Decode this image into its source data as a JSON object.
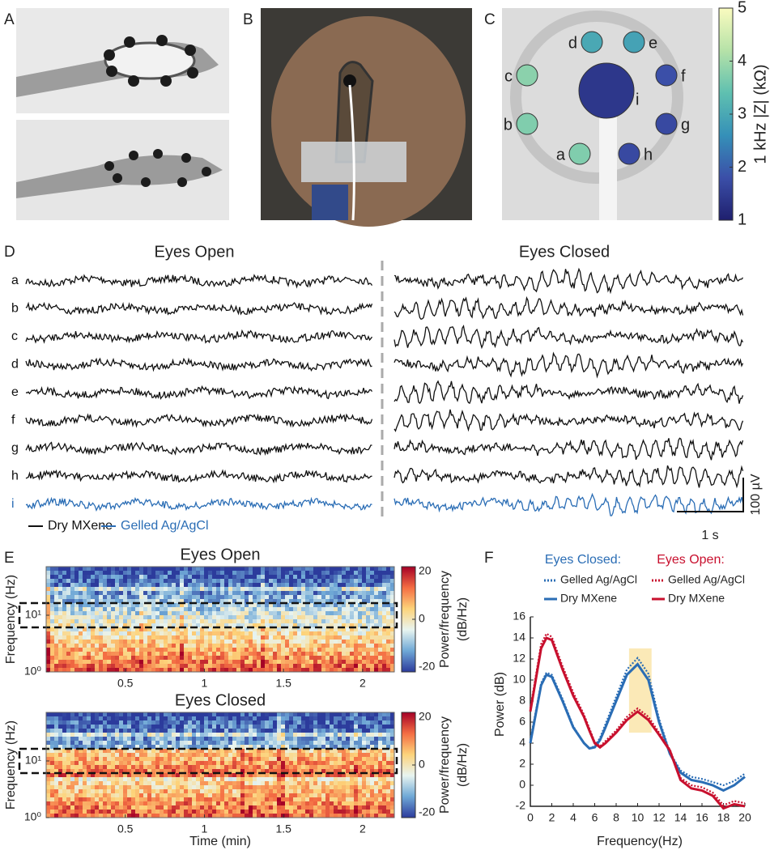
{
  "panel_labels": [
    "A",
    "B",
    "C",
    "D",
    "E",
    "F"
  ],
  "impedance": {
    "colorbar_label": "1 kHz |Z| (kΩ)",
    "clim": [
      1,
      5
    ],
    "ticks": [
      1,
      2,
      3,
      4,
      5
    ],
    "colormap": [
      "#1f1f6e",
      "#3b4fa8",
      "#3590b8",
      "#5fc0b0",
      "#b6e2a8",
      "#fafbbf"
    ],
    "electrodes": [
      {
        "label": "a",
        "value": 3.7
      },
      {
        "label": "b",
        "value": 3.7
      },
      {
        "label": "c",
        "value": 3.8
      },
      {
        "label": "d",
        "value": 3.0
      },
      {
        "label": "e",
        "value": 2.9
      },
      {
        "label": "f",
        "value": 1.8
      },
      {
        "label": "g",
        "value": 1.7
      },
      {
        "label": "h",
        "value": 1.7
      },
      {
        "label": "i",
        "value": 1.4
      }
    ]
  },
  "eeg": {
    "titles": [
      "Eyes Open",
      "Eyes Closed"
    ],
    "channels": [
      {
        "label": "a",
        "legend": 0
      },
      {
        "label": "b",
        "legend": 0
      },
      {
        "label": "c",
        "legend": 0
      },
      {
        "label": "d",
        "legend": 0
      },
      {
        "label": "e",
        "legend": 0
      },
      {
        "label": "f",
        "legend": 0
      },
      {
        "label": "g",
        "legend": 0
      },
      {
        "label": "h",
        "legend": 0
      },
      {
        "label": "i",
        "legend": 1
      }
    ],
    "legend": [
      {
        "name": "Dry MXene",
        "color": "#111111"
      },
      {
        "name": "Gelled Ag/AgCl",
        "color": "#2a6db5"
      }
    ],
    "scale_bar": {
      "voltage": "100 µV",
      "time": "1 s"
    }
  },
  "spectrograms": {
    "charts": [
      {
        "title": "Eyes Open"
      },
      {
        "title": "Eyes Closed"
      }
    ],
    "ylabel": "Frequency (Hz)",
    "xlabel": "Time (min)",
    "xlim": [
      0,
      2.2
    ],
    "xticks": [
      0.5,
      1,
      1.5,
      2
    ],
    "ylim": [
      1,
      72
    ],
    "yticks": [
      {
        "value": 1,
        "label": "10⁰"
      },
      {
        "value": 10,
        "label": "10¹"
      }
    ],
    "clim": [
      -20,
      20
    ],
    "cticks": [
      20,
      0,
      -20
    ],
    "colorbar_label": [
      "Power/frequency",
      "(dB/Hz)"
    ],
    "colormap": [
      "#2c3b9c",
      "#6fa8d6",
      "#e8f4f0",
      "#fdd37a",
      "#f46d43",
      "#a50026"
    ]
  },
  "chart_data": {
    "type": "line",
    "xlabel": "Frequency(Hz)",
    "ylabel": "Power (dB)",
    "xlim": [
      0,
      20
    ],
    "xticks": [
      0,
      2,
      4,
      6,
      8,
      10,
      12,
      14,
      16,
      18,
      20
    ],
    "ylim": [
      -2,
      16
    ],
    "yticks": [
      -2,
      0,
      2,
      4,
      6,
      8,
      10,
      12,
      14,
      16
    ],
    "highlight": {
      "x": [
        9.2,
        11.3
      ],
      "y": [
        5,
        13
      ],
      "color": "#fbe9b7"
    },
    "x": [
      0,
      1,
      1.5,
      2,
      3,
      4,
      5,
      5.5,
      6,
      6.5,
      7,
      8,
      9,
      10,
      11,
      12,
      13,
      14,
      15,
      16,
      17,
      18,
      19,
      20
    ],
    "groups": [
      {
        "title": "Eyes Closed:",
        "color": "#2a6db5",
        "series": [
          {
            "name": "Gelled Ag/AgCl",
            "style": "dotted",
            "values": [
              4.3,
              9.7,
              10.7,
              10.5,
              8.2,
              5.6,
              4,
              3.5,
              3.7,
              4.5,
              5.8,
              8.4,
              11,
              12.1,
              10.6,
              6.3,
              3.1,
              1.4,
              0.8,
              0.6,
              0.3,
              0,
              0.4,
              1.1
            ]
          },
          {
            "name": "Dry MXene",
            "style": "solid",
            "values": [
              4,
              9.5,
              10.5,
              10.3,
              8,
              5.5,
              4,
              3.5,
              3.6,
              4.3,
              5.5,
              8,
              10.5,
              11.5,
              10,
              6,
              3,
              1.2,
              0.5,
              0.3,
              0,
              -0.5,
              0,
              0.8
            ]
          }
        ]
      },
      {
        "title": "Eyes Open:",
        "color": "#c8102e",
        "series": [
          {
            "name": "Gelled Ag/AgCl",
            "style": "dotted",
            "values": [
              7.3,
              13.4,
              14.4,
              14.1,
              11.3,
              8.8,
              6.7,
              5.4,
              4.1,
              3.7,
              4.2,
              5.2,
              6.5,
              7.3,
              6.5,
              5,
              3.4,
              0.7,
              0,
              -0.2,
              -0.7,
              -1.9,
              -1.5,
              -1.7
            ]
          },
          {
            "name": "Dry MXene",
            "style": "solid",
            "values": [
              7,
              13,
              14,
              13.8,
              11,
              8.5,
              6.5,
              5.2,
              4,
              3.6,
              4,
              5,
              6.2,
              7,
              6.2,
              4.8,
              3.3,
              0.5,
              -0.3,
              -0.5,
              -1,
              -2.2,
              -1.8,
              -2
            ]
          }
        ]
      }
    ]
  }
}
